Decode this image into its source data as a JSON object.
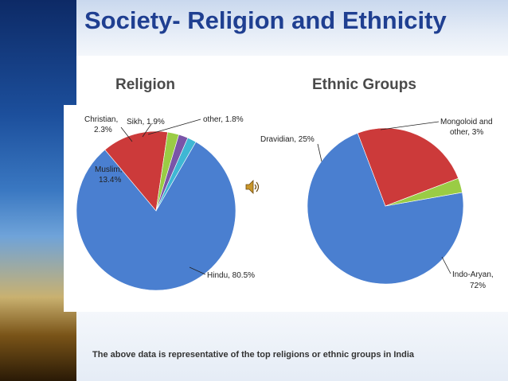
{
  "slide": {
    "title": "Society- Religion and Ethnicity",
    "caption": "The above data is representative of the top religions or ethnic groups in India"
  },
  "icons": {
    "speaker": "speaker-icon"
  },
  "chart_data": [
    {
      "type": "pie",
      "title": "Religion",
      "categories": [
        "Hindu",
        "Muslim",
        "Christian",
        "Sikh",
        "other"
      ],
      "values": [
        80.5,
        13.4,
        2.3,
        1.9,
        1.8
      ],
      "labels": [
        "Hindu, 80.5%",
        "Muslim, 13.4%",
        "Christian, 2.3%",
        "Sikh, 1.9%",
        "other, 1.8%"
      ],
      "colors": [
        "#4a7fd0",
        "#cc3a3a",
        "#9acc45",
        "#7a55a8",
        "#3fb7d4"
      ]
    },
    {
      "type": "pie",
      "title": "Ethnic Groups",
      "categories": [
        "Indo-Aryan",
        "Dravidian",
        "Mongoloid and other"
      ],
      "values": [
        72,
        25,
        3
      ],
      "labels": [
        "Indo-Aryan, 72%",
        "Dravidian, 25%",
        "Mongoloid and other, 3%"
      ],
      "colors": [
        "#4a7fd0",
        "#cc3a3a",
        "#9acc45"
      ]
    }
  ]
}
